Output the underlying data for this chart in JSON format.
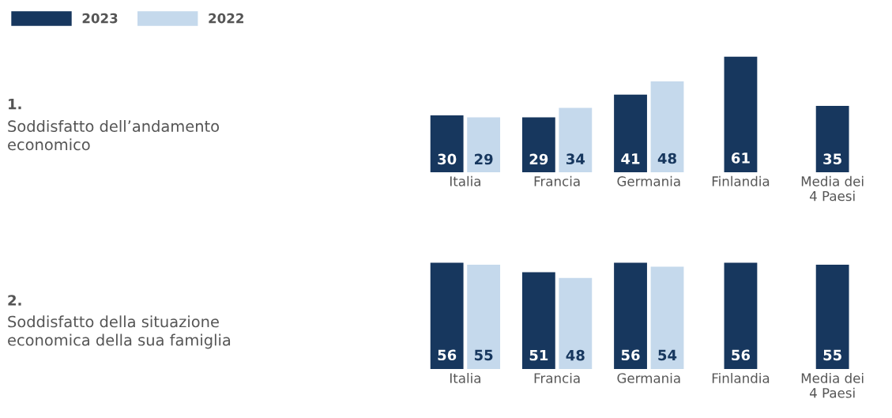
{
  "chart_data": [
    {
      "type": "bar",
      "annotations": [
        "1.",
        "Soddisfatto dell’andamento\neconomico"
      ],
      "categories": [
        "Italia",
        "Francia",
        "Germania",
        "Finlandia",
        "Media dei\n4 Paesi"
      ],
      "data_labels": true,
      "tick_labels": "x",
      "legend": "top left",
      "grid": false,
      "series": [
        {
          "name": "2023",
          "color": "#17375e",
          "values": [
            30,
            29,
            41,
            61,
            35
          ]
        },
        {
          "name": "2022",
          "color": "#c5d9ec",
          "values": [
            29,
            34,
            48,
            null,
            null
          ]
        }
      ]
    },
    {
      "type": "bar",
      "annotations": [
        "2.",
        "Soddisfatto della situazione\neconomica della sua famiglia"
      ],
      "categories": [
        "Italia",
        "Francia",
        "Germania",
        "Finlandia",
        "Media dei\n4 Paesi"
      ],
      "data_labels": true,
      "tick_labels": "x",
      "legend": false,
      "grid": false,
      "series": [
        {
          "color": "#17375e",
          "values": [
            56,
            51,
            56,
            56,
            55
          ]
        },
        {
          "color": "#c5d9ec",
          "values": [
            55,
            48,
            54,
            null,
            null
          ]
        }
      ]
    }
  ]
}
